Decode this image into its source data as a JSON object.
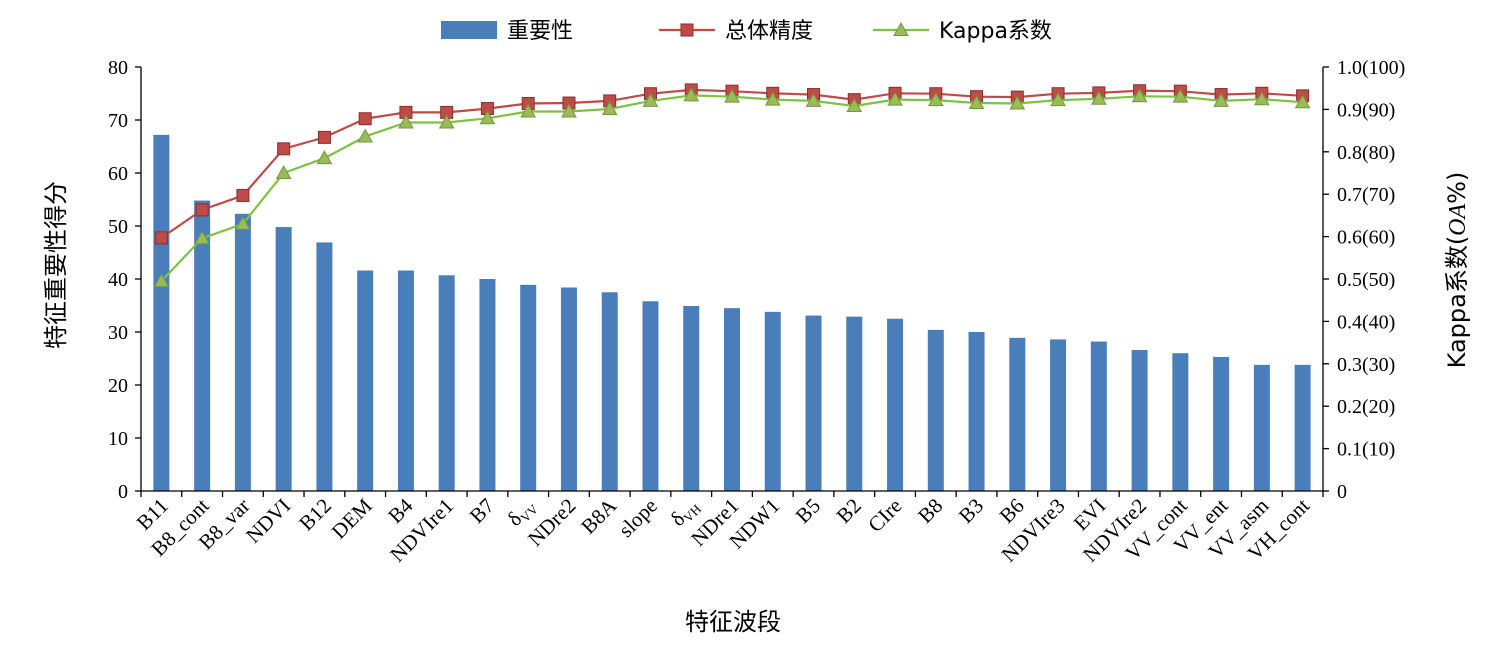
{
  "chart_data": {
    "type": "bar",
    "xlabel": "特征波段",
    "ylabel_left": "特征重要性得分",
    "ylabel_right_prefix": "Kappa系数(",
    "ylabel_right_italic": "OA",
    "ylabel_right_suffix": "%)",
    "left_axis": {
      "min": 0,
      "max": 80,
      "step": 10
    },
    "right_axis": {
      "min": 0,
      "max": 1.0,
      "step": 0.1,
      "tick_labels": [
        "0",
        "0.1(10)",
        "0.2(20)",
        "0.3(30)",
        "0.4(40)",
        "0.5(50)",
        "0.6(60)",
        "0.7(70)",
        "0.8(80)",
        "0.9(90)",
        "1.0(100)"
      ]
    },
    "categories": [
      {
        "main": "B11"
      },
      {
        "main": "B8_cont"
      },
      {
        "main": "B8_var"
      },
      {
        "main": "NDVI"
      },
      {
        "main": "B12"
      },
      {
        "main": "DEM"
      },
      {
        "main": "B4"
      },
      {
        "main": "NDVIre1"
      },
      {
        "main": "B7"
      },
      {
        "main": "δ",
        "sub": "VV"
      },
      {
        "main": "NDre2"
      },
      {
        "main": "B8A"
      },
      {
        "main": "slope"
      },
      {
        "main": "δ",
        "sub": "VH"
      },
      {
        "main": "NDre1"
      },
      {
        "main": "NDW1"
      },
      {
        "main": "B5"
      },
      {
        "main": "B2"
      },
      {
        "main": "CIre"
      },
      {
        "main": "B8"
      },
      {
        "main": "B3"
      },
      {
        "main": "B6"
      },
      {
        "main": "NDVIre3"
      },
      {
        "main": "EVI"
      },
      {
        "main": "NDVIre2"
      },
      {
        "main": "VV_cont"
      },
      {
        "main": "VV_ent"
      },
      {
        "main": "VV_asm"
      },
      {
        "main": "VH_cont"
      }
    ],
    "legend_position": "top-center",
    "grid": false,
    "series": [
      {
        "name": "重要性",
        "kind": "bar",
        "axis": "left",
        "color": "#4a7ebb",
        "values": [
          67.2,
          54.8,
          52.3,
          49.8,
          46.9,
          41.6,
          41.6,
          40.7,
          40.0,
          38.9,
          38.4,
          37.5,
          35.8,
          34.9,
          34.5,
          33.8,
          33.1,
          32.9,
          32.5,
          30.4,
          30.0,
          28.9,
          28.6,
          28.2,
          26.6,
          26.0,
          25.3,
          23.8,
          23.8
        ]
      },
      {
        "name": "总体精度",
        "kind": "line",
        "axis": "right",
        "marker": "square",
        "color": "#be4b48",
        "marker_fill": "#be4b48",
        "values": [
          0.597,
          0.663,
          0.697,
          0.807,
          0.834,
          0.878,
          0.893,
          0.893,
          0.902,
          0.914,
          0.915,
          0.92,
          0.937,
          0.946,
          0.943,
          0.938,
          0.935,
          0.923,
          0.938,
          0.937,
          0.93,
          0.929,
          0.937,
          0.939,
          0.944,
          0.943,
          0.935,
          0.938,
          0.932
        ]
      },
      {
        "name": "Kappa系数",
        "kind": "line",
        "axis": "right",
        "marker": "triangle",
        "color": "#7dc242",
        "marker_fill": "#9bbb59",
        "values": [
          0.495,
          0.596,
          0.63,
          0.75,
          0.785,
          0.836,
          0.869,
          0.869,
          0.879,
          0.895,
          0.895,
          0.901,
          0.92,
          0.933,
          0.93,
          0.923,
          0.92,
          0.908,
          0.923,
          0.922,
          0.915,
          0.914,
          0.922,
          0.925,
          0.931,
          0.93,
          0.92,
          0.924,
          0.917
        ]
      }
    ]
  }
}
